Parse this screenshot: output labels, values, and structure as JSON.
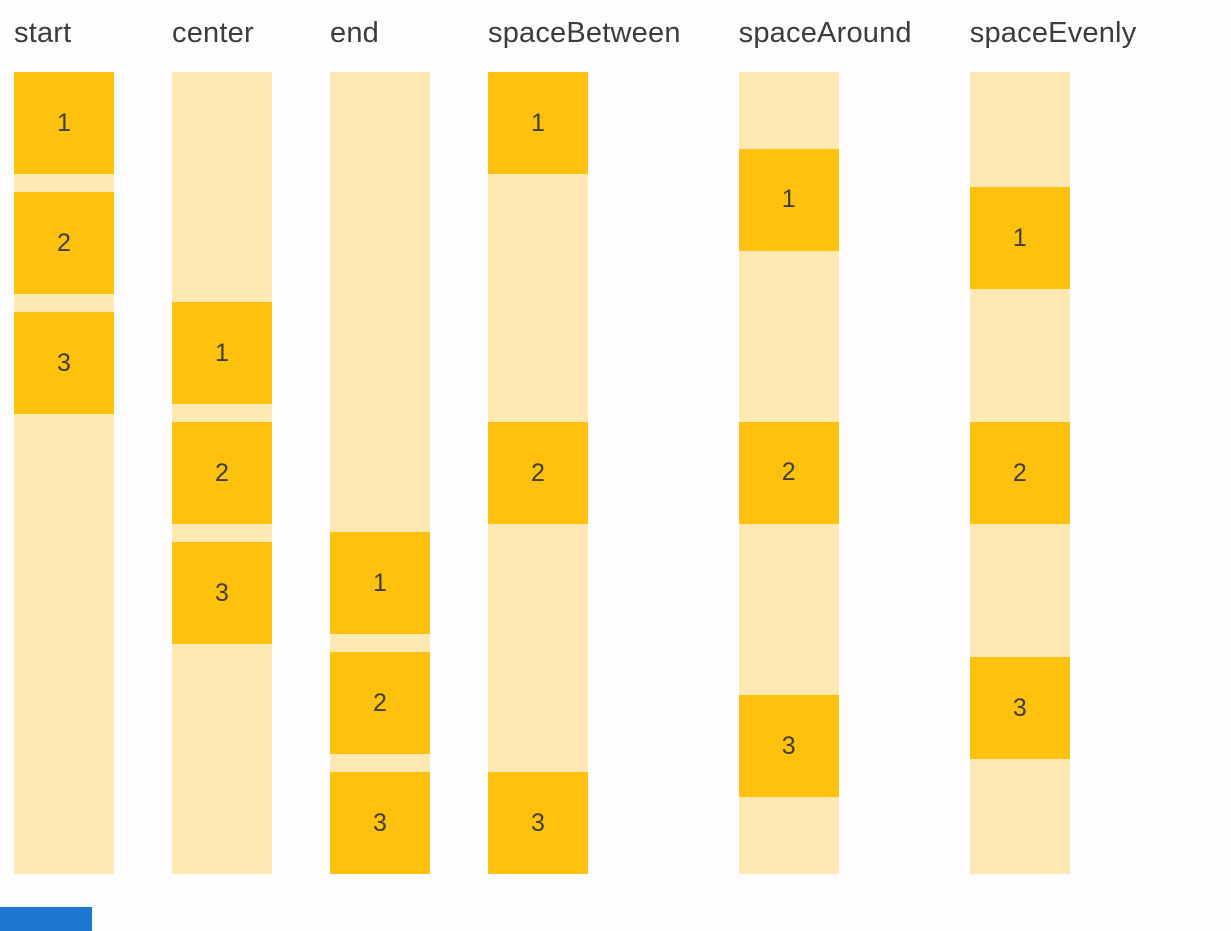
{
  "page": {
    "background": "#FDFDFF"
  },
  "colors": {
    "track_background": "#FEE9B2",
    "item_background": "#FEC10D",
    "label_text": "#3C3C3C",
    "item_number_text": "#3F3F3F",
    "partial_blue_element": "#1B76D1"
  },
  "columns": [
    {
      "label": "start",
      "justify": "flex-start",
      "items": [
        "1",
        "2",
        "3"
      ]
    },
    {
      "label": "center",
      "justify": "center",
      "items": [
        "1",
        "2",
        "3"
      ]
    },
    {
      "label": "end",
      "justify": "flex-end",
      "items": [
        "1",
        "2",
        "3"
      ]
    },
    {
      "label": "spaceBetween",
      "justify": "space-between",
      "items": [
        "1",
        "2",
        "3"
      ]
    },
    {
      "label": "spaceAround",
      "justify": "space-around",
      "items": [
        "1",
        "2",
        "3"
      ]
    },
    {
      "label": "spaceEvenly",
      "justify": "space-evenly",
      "items": [
        "1",
        "2",
        "3"
      ]
    }
  ]
}
